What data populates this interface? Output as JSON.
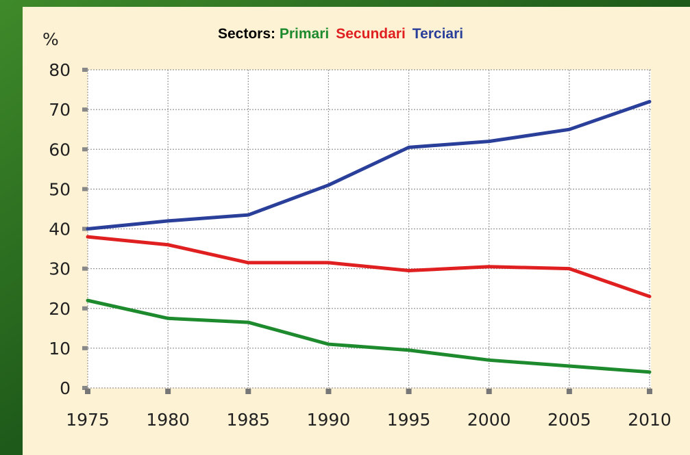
{
  "chart_data": {
    "type": "line",
    "title": "Sectors:",
    "y_label": "%",
    "x": [
      1975,
      1980,
      1985,
      1990,
      1995,
      2000,
      2005,
      2010
    ],
    "xlim": [
      1975,
      2010
    ],
    "xticks": [
      1975,
      1980,
      1985,
      1990,
      1995,
      2000,
      2005,
      2010
    ],
    "ylim": [
      0,
      80
    ],
    "yticks": [
      0,
      10,
      20,
      30,
      40,
      50,
      60,
      70,
      80
    ],
    "grid": true,
    "series": [
      {
        "name": "Primari",
        "color": "#1e8a2e",
        "values": [
          22,
          17.5,
          16.5,
          11,
          9.5,
          7,
          5.5,
          4
        ]
      },
      {
        "name": "Secundari",
        "color": "#e02020",
        "values": [
          38,
          36,
          31.5,
          31.5,
          29.5,
          30.5,
          30,
          23
        ]
      },
      {
        "name": "Terciari",
        "color": "#2a3f9a",
        "values": [
          40,
          42,
          43.5,
          51,
          60.5,
          62,
          65,
          72
        ]
      }
    ]
  }
}
